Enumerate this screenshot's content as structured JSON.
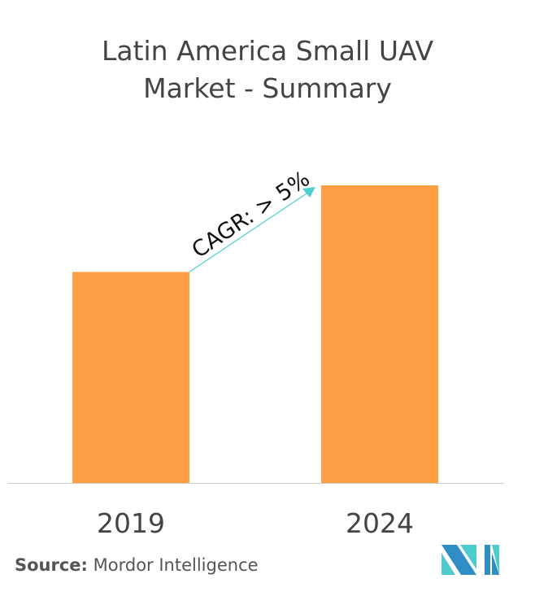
{
  "chart_data": {
    "type": "bar",
    "title_lines": [
      "Latin America Small UAV",
      "Market - Summary"
    ],
    "categories": [
      "2019",
      "2024"
    ],
    "values": [
      100,
      141
    ],
    "ylim": [
      0,
      160
    ],
    "grid": false,
    "annotation": "CAGR: > 5%",
    "colors": {
      "bar": "#FF9F45",
      "arrow": "#4FCFD0",
      "axis": "#CCCCCC",
      "text": "#444444"
    }
  },
  "source": {
    "label": "Source:",
    "text": " Mordor Intelligence"
  },
  "logo": {
    "name": "mordor-intelligence-logo",
    "colors": [
      "#2E8EC4",
      "#4ECBCF"
    ]
  }
}
